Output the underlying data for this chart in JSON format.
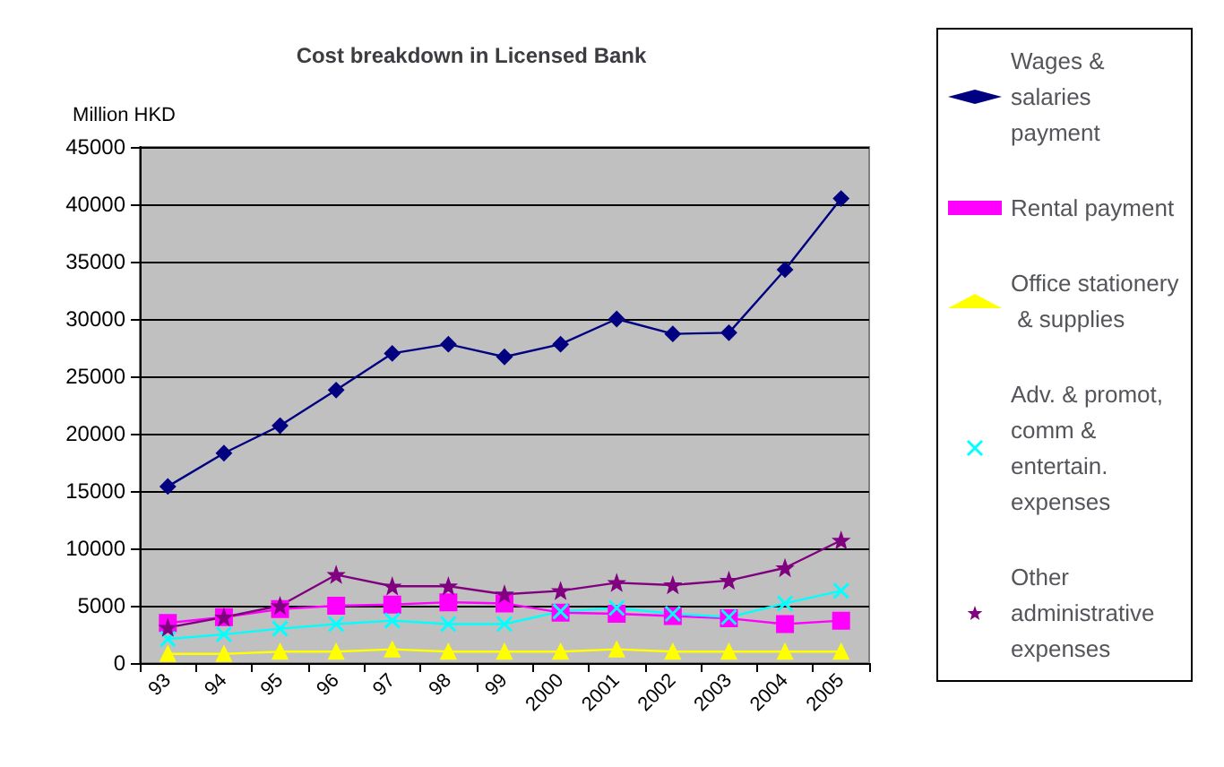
{
  "chart_data": {
    "type": "line",
    "title": "Cost breakdown in Licensed Bank",
    "ylabel": "Million HKD",
    "categories": [
      "93",
      "94",
      "95",
      "96",
      "97",
      "98",
      "99",
      "2000",
      "2001",
      "2002",
      "2003",
      "2004",
      "2005"
    ],
    "series": [
      {
        "name": "Wages & salaries payment",
        "color": "#000080",
        "marker": "diamond",
        "values": [
          15400,
          18300,
          20700,
          23800,
          27000,
          27800,
          26700,
          27800,
          30000,
          28700,
          28800,
          34300,
          40500
        ]
      },
      {
        "name": "Rental payment",
        "color": "#ff00ff",
        "marker": "square",
        "values": [
          3500,
          4000,
          4700,
          5000,
          5100,
          5300,
          5200,
          4400,
          4300,
          4100,
          3900,
          3400,
          3700
        ]
      },
      {
        "name": "Office stationery & supplies",
        "color": "#ffff00",
        "marker": "triangle",
        "values": [
          800,
          800,
          1000,
          1000,
          1200,
          1000,
          1000,
          1000,
          1200,
          1000,
          1000,
          1000,
          1000
        ]
      },
      {
        "name": "Adv. & promot, comm & entertain. expenses",
        "color": "#00ffff",
        "marker": "cross",
        "values": [
          2100,
          2500,
          3000,
          3400,
          3700,
          3400,
          3400,
          4500,
          4800,
          4300,
          4000,
          5200,
          6300
        ]
      },
      {
        "name": "Other administrative expenses",
        "color": "#800080",
        "marker": "star",
        "values": [
          3100,
          4000,
          5000,
          7700,
          6700,
          6700,
          6000,
          6300,
          7000,
          6800,
          7200,
          8300,
          10700
        ]
      }
    ],
    "ylim": [
      0,
      45000
    ],
    "yticks": [
      0,
      5000,
      10000,
      15000,
      20000,
      25000,
      30000,
      35000,
      40000,
      45000
    ],
    "grid": "y",
    "legend": "right"
  }
}
